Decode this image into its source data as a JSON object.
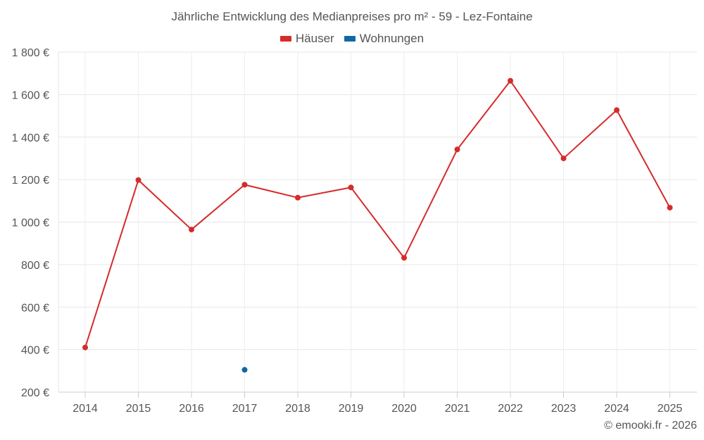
{
  "chart_data": {
    "type": "line",
    "title": "Jährliche Entwicklung des Medianpreises pro m² - 59 - Lez-Fontaine",
    "categories": [
      "2014",
      "2015",
      "2016",
      "2017",
      "2018",
      "2019",
      "2020",
      "2021",
      "2022",
      "2023",
      "2024",
      "2025"
    ],
    "series": [
      {
        "name": "Häuser",
        "color": "#d52b2b",
        "values": [
          410,
          1198,
          965,
          1176,
          1115,
          1163,
          832,
          1342,
          1665,
          1300,
          1527,
          1068
        ]
      },
      {
        "name": "Wohnungen",
        "color": "#1268a6",
        "values": [
          null,
          null,
          null,
          305,
          null,
          null,
          null,
          null,
          null,
          null,
          null,
          null
        ]
      }
    ],
    "ylim": [
      200,
      1800
    ],
    "yticks": [
      200,
      400,
      600,
      800,
      1000,
      1200,
      1400,
      1600,
      1800
    ],
    "ytick_labels": [
      "200 €",
      "400 €",
      "600 €",
      "800 €",
      "1 000 €",
      "1 200 €",
      "1 400 €",
      "1 600 €",
      "1 800 €"
    ],
    "grid": true,
    "legend": "top-center",
    "xlabel": "",
    "ylabel": ""
  },
  "credit": "© emooki.fr - 2026"
}
